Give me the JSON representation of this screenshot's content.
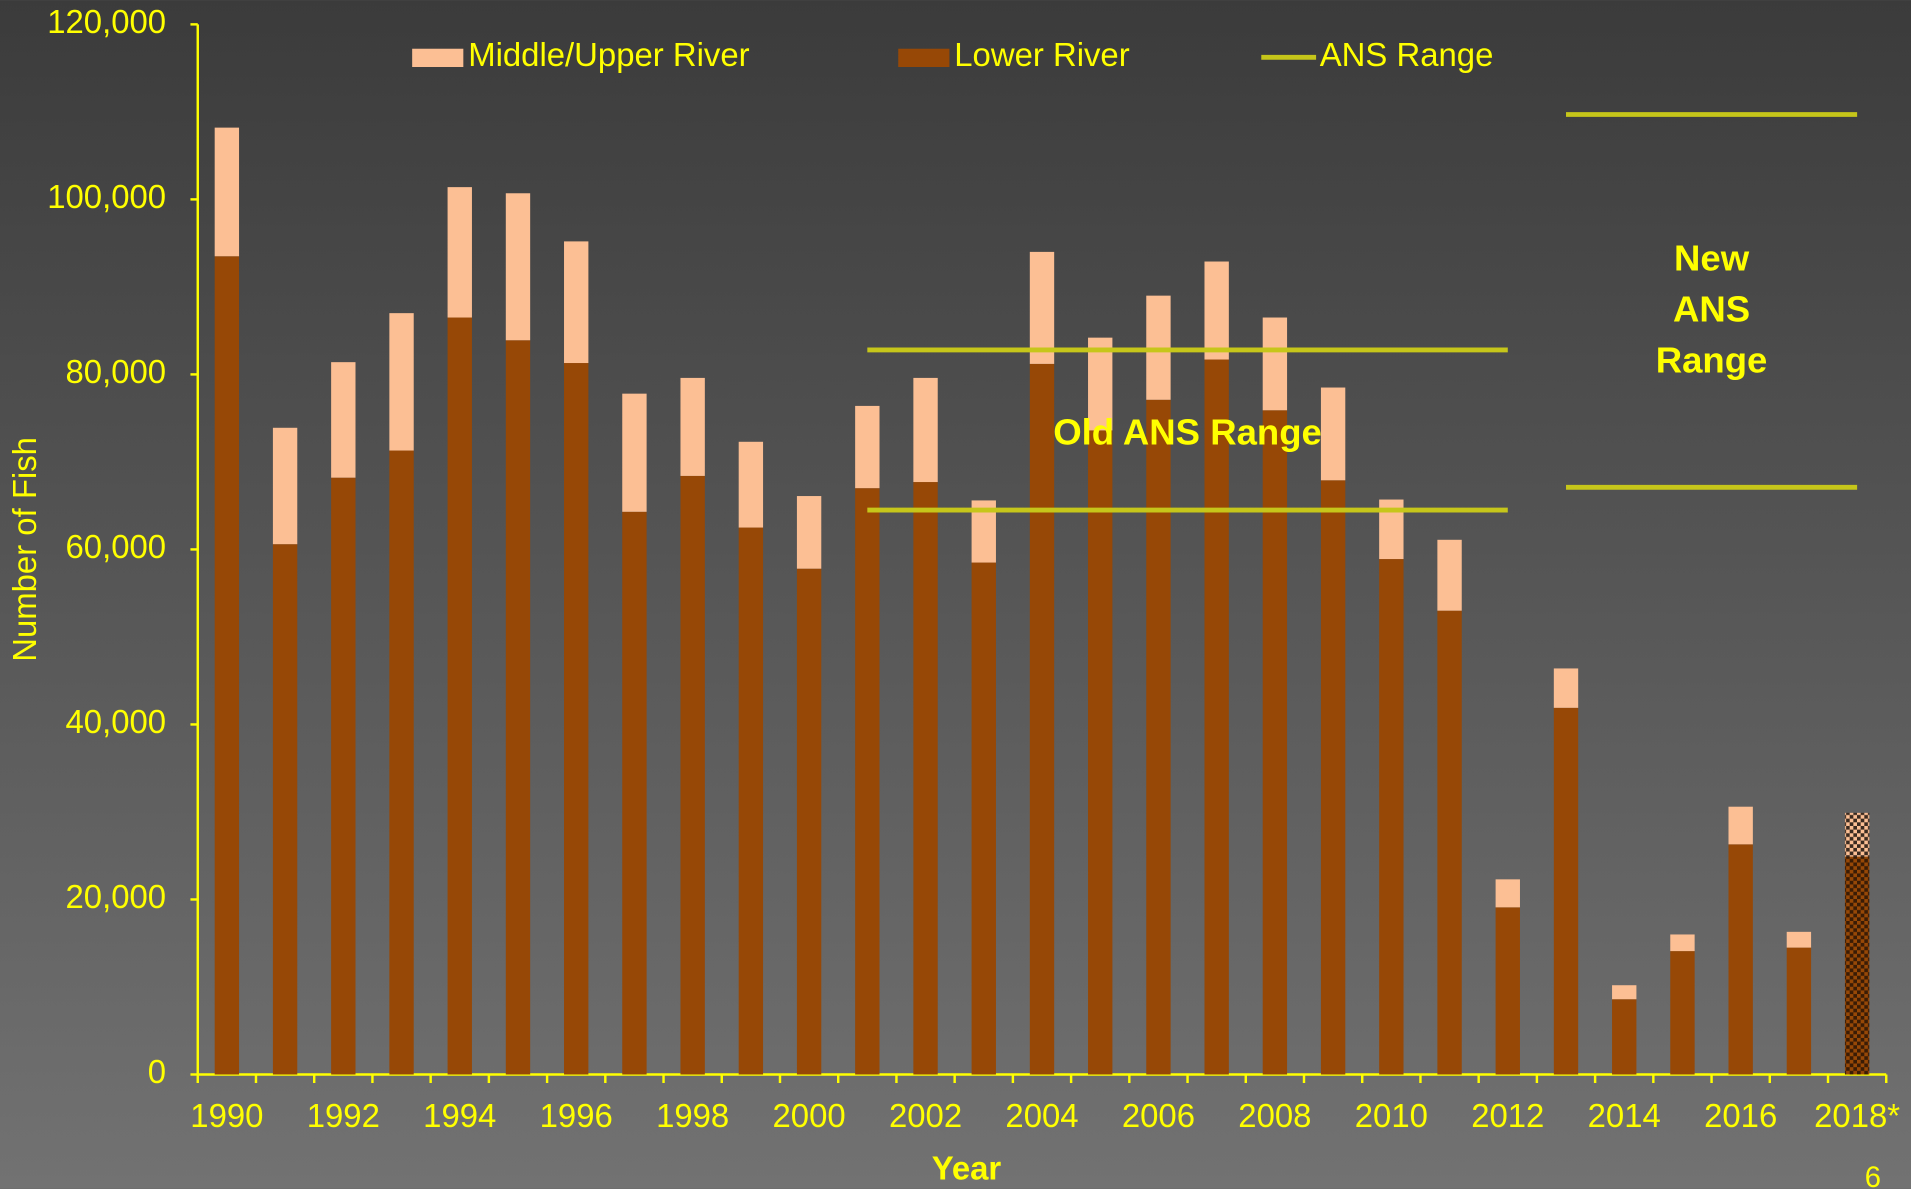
{
  "chart_data": {
    "type": "stacked_bar",
    "x_label": "Year",
    "y_label": "Number of Fish",
    "categories": [
      "1990",
      null,
      "1992",
      null,
      "1994",
      null,
      "1996",
      null,
      "1998",
      null,
      "2000",
      null,
      "2002",
      null,
      "2004",
      null,
      "2006",
      null,
      "2008",
      null,
      "2010",
      null,
      "2012",
      null,
      "2014",
      null,
      "2016",
      null,
      "2018*"
    ],
    "series": [
      {
        "name": "Middle/Upper River",
        "color": "#fcbf94",
        "values": [
          14700,
          13300,
          13200,
          15700,
          14900,
          16800,
          13900,
          13500,
          11200,
          9800,
          8300,
          9400,
          11900,
          7100,
          12800,
          10600,
          11900,
          11200,
          10600,
          10600,
          6800,
          8100,
          3200,
          4500,
          1600,
          1900,
          4300,
          1800,
          5000
        ]
      },
      {
        "name": "Lower River",
        "color": "#974806",
        "values": [
          93500,
          60600,
          68200,
          71300,
          86500,
          83900,
          81300,
          64300,
          68400,
          62500,
          57800,
          67000,
          67700,
          58500,
          81200,
          73600,
          77100,
          81700,
          75900,
          67900,
          58900,
          53000,
          19100,
          41900,
          8600,
          14100,
          26300,
          14500,
          24900
        ]
      }
    ],
    "ans_legend": "ANS Range",
    "ans_color": "#c6c61a",
    "ans_ranges": [
      {
        "label": [
          "Old ANS Range"
        ],
        "low": 64500,
        "high": 82800,
        "span": [
          11,
          22
        ]
      },
      {
        "label": [
          "New",
          "ANS",
          "Range"
        ],
        "low": 67100,
        "high": 109700,
        "span": [
          23,
          28
        ]
      }
    ],
    "ylim": [
      0,
      120000
    ],
    "yticks": [
      0,
      {
        "value": 20000,
        "label": "20,000"
      },
      {
        "value": 40000,
        "label": "40,000"
      },
      {
        "value": 60000,
        "label": "60,000"
      },
      {
        "value": 80000,
        "label": "80,000"
      },
      {
        "value": 100000,
        "label": "100,000"
      },
      {
        "value": 120000,
        "label": "120,000"
      }
    ],
    "legend": "top",
    "page_number": "6"
  }
}
